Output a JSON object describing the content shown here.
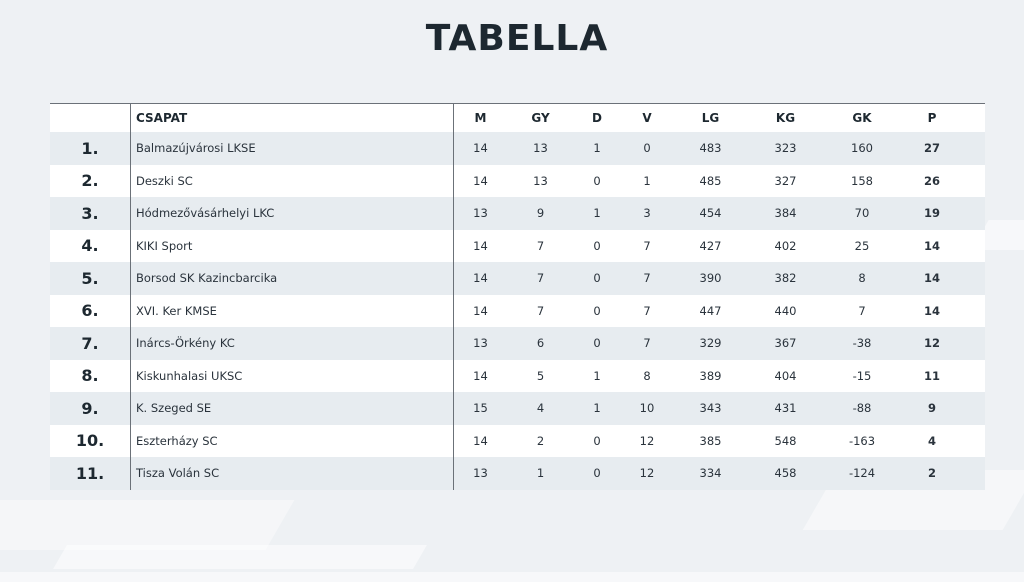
{
  "title": "TABELLA",
  "headers": {
    "rank": "",
    "team": "CSAPAT",
    "m": "M",
    "gy": "GY",
    "d": "D",
    "v": "V",
    "lg": "LG",
    "kg": "KG",
    "gk": "GK",
    "p": "P"
  },
  "rows": [
    {
      "rank": "1.",
      "team": "Balmazújvárosi LKSE",
      "m": "14",
      "gy": "13",
      "d": "1",
      "v": "0",
      "lg": "483",
      "kg": "323",
      "gk": "160",
      "p": "27"
    },
    {
      "rank": "2.",
      "team": "Deszki SC",
      "m": "14",
      "gy": "13",
      "d": "0",
      "v": "1",
      "lg": "485",
      "kg": "327",
      "gk": "158",
      "p": "26"
    },
    {
      "rank": "3.",
      "team": "Hódmezővásárhelyi LKC",
      "m": "13",
      "gy": "9",
      "d": "1",
      "v": "3",
      "lg": "454",
      "kg": "384",
      "gk": "70",
      "p": "19"
    },
    {
      "rank": "4.",
      "team": "KIKI Sport",
      "m": "14",
      "gy": "7",
      "d": "0",
      "v": "7",
      "lg": "427",
      "kg": "402",
      "gk": "25",
      "p": "14"
    },
    {
      "rank": "5.",
      "team": "Borsod SK Kazincbarcika",
      "m": "14",
      "gy": "7",
      "d": "0",
      "v": "7",
      "lg": "390",
      "kg": "382",
      "gk": "8",
      "p": "14"
    },
    {
      "rank": "6.",
      "team": "XVI. Ker KMSE",
      "m": "14",
      "gy": "7",
      "d": "0",
      "v": "7",
      "lg": "447",
      "kg": "440",
      "gk": "7",
      "p": "14"
    },
    {
      "rank": "7.",
      "team": "Inárcs-Örkény KC",
      "m": "13",
      "gy": "6",
      "d": "0",
      "v": "7",
      "lg": "329",
      "kg": "367",
      "gk": "-38",
      "p": "12"
    },
    {
      "rank": "8.",
      "team": "Kiskunhalasi UKSC",
      "m": "14",
      "gy": "5",
      "d": "1",
      "v": "8",
      "lg": "389",
      "kg": "404",
      "gk": "-15",
      "p": "11"
    },
    {
      "rank": "9.",
      "team": "K. Szeged SE",
      "m": "15",
      "gy": "4",
      "d": "1",
      "v": "10",
      "lg": "343",
      "kg": "431",
      "gk": "-88",
      "p": "9"
    },
    {
      "rank": "10.",
      "team": "Eszterházy SC",
      "m": "14",
      "gy": "2",
      "d": "0",
      "v": "12",
      "lg": "385",
      "kg": "548",
      "gk": "-163",
      "p": "4"
    },
    {
      "rank": "11.",
      "team": "Tisza Volán SC",
      "m": "13",
      "gy": "1",
      "d": "0",
      "v": "12",
      "lg": "334",
      "kg": "458",
      "gk": "-124",
      "p": "2"
    }
  ],
  "colors": {
    "background": "#eef1f4",
    "row_alt": "#e7ecf0",
    "row": "#ffffff",
    "text": "#1d2830"
  }
}
